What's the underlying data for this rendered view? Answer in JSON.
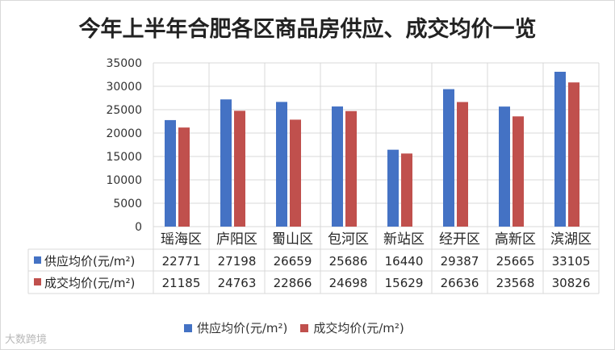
{
  "page": {
    "watermark": "大数跨境"
  },
  "chart_data": {
    "type": "bar",
    "title": "今年上半年合肥各区商品房供应、成交均价一览",
    "categories": [
      "瑶海区",
      "庐阳区",
      "蜀山区",
      "包河区",
      "新站区",
      "经开区",
      "高新区",
      "滨湖区"
    ],
    "series": [
      {
        "name": "供应均价(元/m²)",
        "values": [
          22771,
          27198,
          26659,
          25686,
          16440,
          29387,
          25665,
          33105
        ],
        "color": "#4472c4"
      },
      {
        "name": "成交均价(元/m²)",
        "values": [
          21185,
          24763,
          22866,
          24698,
          15629,
          26636,
          23568,
          30826
        ],
        "color": "#c0504d"
      }
    ],
    "ylim": [
      0,
      35000
    ],
    "yticks": [
      "0",
      "5000",
      "10000",
      "15000",
      "20000",
      "25000",
      "30000",
      "35000"
    ],
    "ytick_values": [
      0,
      5000,
      10000,
      15000,
      20000,
      25000,
      30000,
      35000
    ],
    "grid": true,
    "data_table": true,
    "legend": "bottom"
  }
}
